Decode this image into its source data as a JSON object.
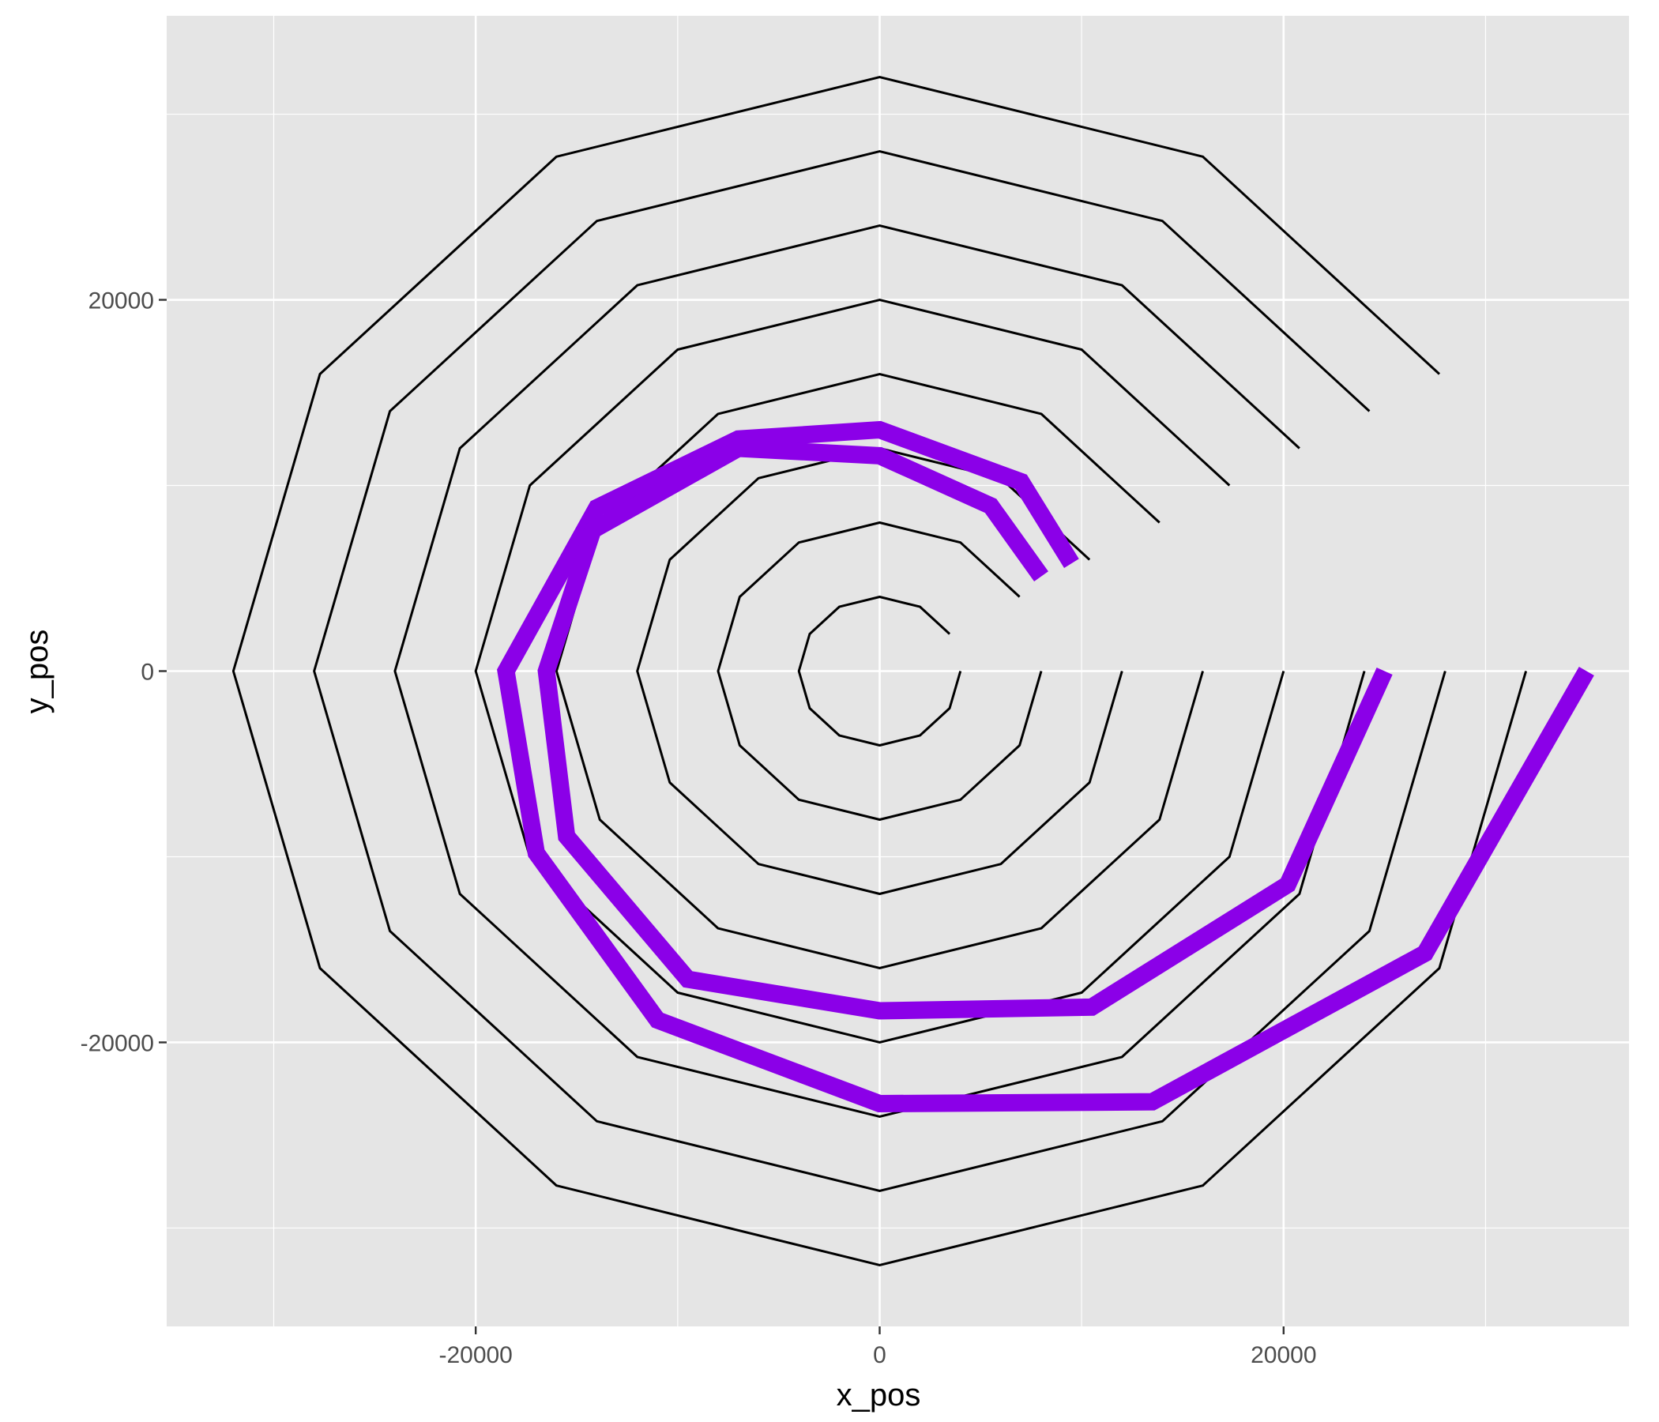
{
  "chart_data": {
    "type": "line",
    "xlabel": "x_pos",
    "ylabel": "y_pos",
    "xlim": [
      -35300,
      37100
    ],
    "ylim": [
      -35300,
      35300
    ],
    "x_ticks": [
      -20000,
      0,
      20000
    ],
    "y_ticks": [
      20000,
      0,
      -20000
    ],
    "x_tick_labels": [
      "-20000",
      "0",
      "20000"
    ],
    "y_tick_labels": [
      "20000",
      "0",
      "-20000"
    ],
    "grid": true,
    "background": "#E5E5E5",
    "gridline_color": "#FFFFFF",
    "legend": "none",
    "spiral": {
      "color": "#000000",
      "points_per_turn": 12,
      "radii": [
        4000,
        8000,
        12000,
        16000,
        20000,
        24000,
        28000,
        32000
      ]
    },
    "highlight_paths": [
      {
        "color": "#8B00E8",
        "points": [
          [
            9500,
            5800
          ],
          [
            7000,
            10200
          ],
          [
            0,
            13000
          ],
          [
            -7000,
            12500
          ],
          [
            -14000,
            8800
          ],
          [
            -18500,
            0
          ],
          [
            -17000,
            -9800
          ],
          [
            -11000,
            -18800
          ],
          [
            0,
            -23300
          ],
          [
            13500,
            -23200
          ],
          [
            27000,
            -15200
          ],
          [
            35000,
            0
          ]
        ]
      },
      {
        "color": "#8B00E8",
        "points": [
          [
            8000,
            5100
          ],
          [
            5500,
            8900
          ],
          [
            0,
            11600
          ],
          [
            -7000,
            12000
          ],
          [
            -14200,
            7600
          ],
          [
            -16500,
            0
          ],
          [
            -15500,
            -8900
          ],
          [
            -9500,
            -16600
          ],
          [
            0,
            -18300
          ],
          [
            10500,
            -18100
          ],
          [
            20200,
            -11500
          ],
          [
            25000,
            0
          ]
        ]
      }
    ]
  }
}
